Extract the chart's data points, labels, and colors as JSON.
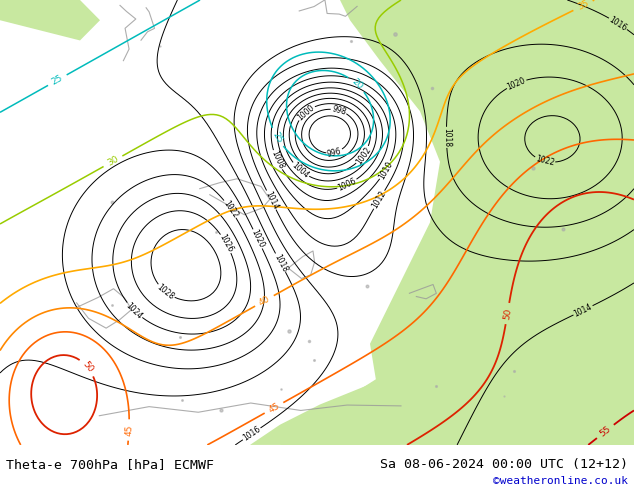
{
  "title_left": "Theta-e 700hPa [hPa] ECMWF",
  "title_right": "Sa 08-06-2024 00:00 UTC (12+12)",
  "credit": "©weatheronline.co.uk",
  "bg_color": "#f0f0e8",
  "green_color": "#c8e8a0",
  "bottom_bar_color": "#ffffff",
  "title_fontsize": 9.5,
  "credit_color": "#0000cc",
  "fig_width": 6.34,
  "fig_height": 4.9,
  "dpi": 100
}
